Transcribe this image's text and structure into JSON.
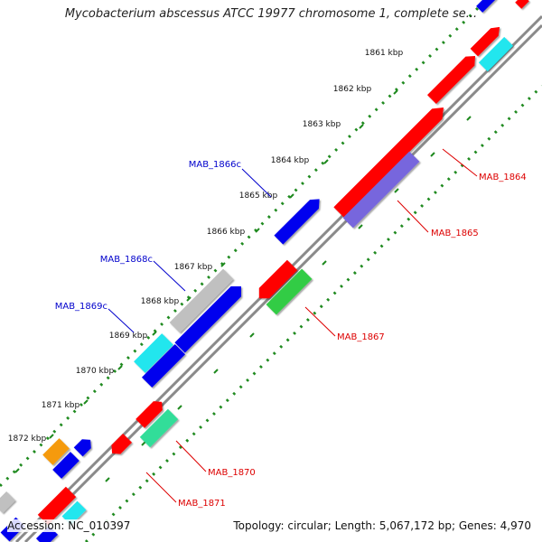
{
  "title": "Mycobacterium abscessus ATCC 19977 chromosome 1, complete se...",
  "footer": {
    "accession": "Accession: NC_010397",
    "stats": "Topology: circular; Length: 5,067,172 bp; Genes: 4,970"
  },
  "colors": {
    "backbone": "#8a8a8a",
    "tick_ring": "#1f8a1f",
    "label_blue": "#0000cc",
    "label_red": "#dd0000",
    "red_gene": "#ff0000",
    "blue_gene": "#0000ee",
    "grey_gene": "#c0c0c0",
    "cyan_gene": "#22e6ee",
    "green_gene": "#33cc44",
    "purple_gene": "#7766dd",
    "orange_gene": "#f59a10",
    "teal_gene": "#33dd99"
  },
  "kbp_labels": [
    "1861 kbp",
    "1862 kbp",
    "1863 kbp",
    "1864 kbp",
    "1865 kbp",
    "1866 kbp",
    "1867 kbp",
    "1868 kbp",
    "1869 kbp",
    "1870 kbp",
    "1871 kbp",
    "1872 kbp"
  ],
  "gene_labels": {
    "outer": [
      "MAB_1866c",
      "MAB_1868c",
      "MAB_1869c"
    ],
    "inner": [
      "MAB_1864",
      "MAB_1865",
      "MAB_1867",
      "MAB_1870",
      "MAB_1871"
    ]
  }
}
